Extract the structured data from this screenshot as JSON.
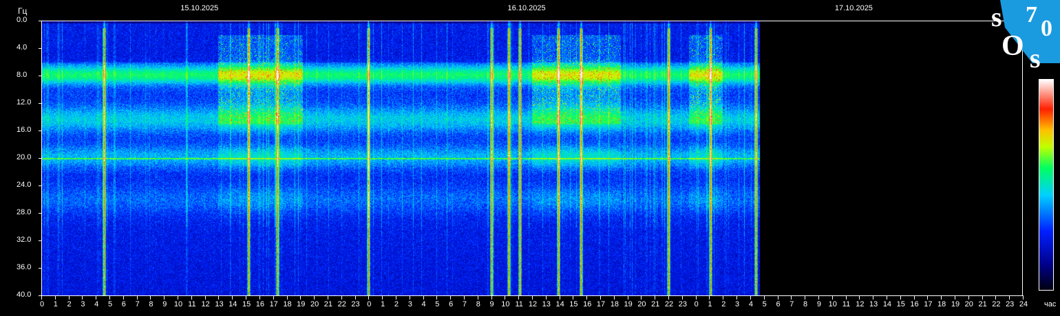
{
  "chart_data": {
    "type": "heatmap",
    "title": "",
    "ylabel": "Гц",
    "xlabel": "час",
    "ylim": [
      40.0,
      0.0
    ],
    "yticks": [
      "0.0",
      "4.0",
      "8.0",
      "12.0",
      "16.0",
      "20.0",
      "24.0",
      "28.0",
      "32.0",
      "36.0",
      "40.0"
    ],
    "dates": [
      "15.10.2025",
      "16.10.2025",
      "17.10.2025"
    ],
    "xticks": [
      "0",
      "1",
      "2",
      "3",
      "4",
      "5",
      "6",
      "7",
      "8",
      "9",
      "10",
      "11",
      "12",
      "13",
      "14",
      "15",
      "16",
      "17",
      "18",
      "19",
      "20",
      "21",
      "22",
      "23",
      "0",
      "1",
      "2",
      "3",
      "4",
      "5",
      "6",
      "7",
      "8",
      "9",
      "10",
      "11",
      "12",
      "13",
      "14",
      "15",
      "16",
      "17",
      "18",
      "19",
      "20",
      "21",
      "22",
      "23",
      "0",
      "1",
      "2",
      "3",
      "4",
      "5",
      "6",
      "7",
      "8",
      "9",
      "10",
      "11",
      "12",
      "13",
      "14",
      "15",
      "16",
      "17",
      "18",
      "19",
      "20",
      "21",
      "22",
      "23",
      "24"
    ],
    "xlim_hours": [
      0,
      72
    ],
    "data_end_hours": 52.7,
    "resonance_bands_hz": [
      7.8,
      14.3,
      20.0,
      26.0
    ],
    "strong_vertical_events_hours": [
      4.6,
      15.2,
      17.3,
      24.0,
      33.0,
      34.3,
      35.1,
      37.9,
      39.6,
      46.0,
      49.1,
      52.4
    ],
    "active_periods_hours": [
      [
        13,
        19.2
      ],
      [
        36,
        42.5
      ],
      [
        47.5,
        50
      ]
    ],
    "colormap": [
      "#000010",
      "#00008a",
      "#0020ff",
      "#00d0ff",
      "#00ff60",
      "#c0ff00",
      "#ffc000",
      "#ff2000",
      "#ffffff"
    ]
  },
  "logo": {
    "text": "SOS70",
    "color": "#1a9be0"
  }
}
